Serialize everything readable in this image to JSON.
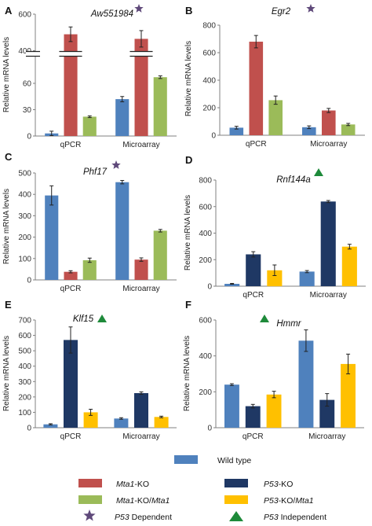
{
  "colors": {
    "wild_type": "#4f81bd",
    "mta1_ko": "#c0504d",
    "mta1_ko_mta1": "#9bbb59",
    "p53_ko": "#1f3864",
    "p53_ko_mta1": "#ffc000",
    "dependent_star": "#5f497a",
    "independent_triangle": "#1e8a3a"
  },
  "legend": {
    "wild_type": "Wild type",
    "mta1_ko_gene": "Mta1",
    "mta1_ko_suffix": "-KO",
    "mta1_ko_mta1_gene": "Mta1",
    "mta1_ko_mta1_mid": "-KO/",
    "mta1_ko_mta1_gene2": "Mta1",
    "p53_ko_gene": "P53",
    "p53_ko_suffix": "-KO",
    "p53_ko_mta1_gene": "P53",
    "p53_ko_mta1_mid": "-KO/",
    "p53_ko_mta1_gene2": "Mta1",
    "p53_dependent_gene": "P53",
    "p53_dependent_suffix": " Dependent",
    "p53_independent_gene": "P53",
    "p53_independent_suffix": " Independent"
  },
  "chart_data": [
    {
      "panel": "A",
      "type": "bar",
      "title": "Aw551984",
      "marker": "star",
      "ylabel": "Relative mRNA levels",
      "broken_axis": true,
      "ylim_lower": [
        0,
        90
      ],
      "yticks_lower": [
        0,
        30,
        60
      ],
      "ylim_upper": [
        400,
        600
      ],
      "yticks_upper": [
        400,
        600
      ],
      "categories": [
        "qPCR",
        "Microarray"
      ],
      "series": [
        {
          "name": "Wild type",
          "color_key": "wild_type",
          "values": [
            3,
            42
          ],
          "errors": [
            2.5,
            3
          ]
        },
        {
          "name": "Mta1-KO",
          "color_key": "mta1_ko",
          "values": [
            490,
            465
          ],
          "errors": [
            40,
            45
          ]
        },
        {
          "name": "Mta1-KO/Mta1",
          "color_key": "mta1_ko_mta1",
          "values": [
            22,
            67
          ],
          "errors": [
            1,
            1.5
          ]
        }
      ]
    },
    {
      "panel": "B",
      "type": "bar",
      "title": "Egr2",
      "marker": "star",
      "ylabel": "Relative mRNA levels",
      "ylim": [
        0,
        800
      ],
      "yticks": [
        0,
        200,
        400,
        600,
        800
      ],
      "categories": [
        "qPCR",
        "Microarray"
      ],
      "series": [
        {
          "name": "Wild type",
          "color_key": "wild_type",
          "values": [
            55,
            58
          ],
          "errors": [
            10,
            10
          ]
        },
        {
          "name": "Mta1-KO",
          "color_key": "mta1_ko",
          "values": [
            680,
            180
          ],
          "errors": [
            45,
            15
          ]
        },
        {
          "name": "Mta1-KO/Mta1",
          "color_key": "mta1_ko_mta1",
          "values": [
            255,
            78
          ],
          "errors": [
            30,
            8
          ]
        }
      ]
    },
    {
      "panel": "C",
      "type": "bar",
      "title": "Phf17",
      "marker": "star",
      "ylabel": "Relative mRNA levels",
      "ylim": [
        0,
        500
      ],
      "yticks": [
        0,
        100,
        200,
        300,
        400,
        500
      ],
      "categories": [
        "qPCR",
        "Microarray"
      ],
      "series": [
        {
          "name": "Wild type",
          "color_key": "wild_type",
          "values": [
            395,
            457
          ],
          "errors": [
            45,
            8
          ]
        },
        {
          "name": "Mta1-KO",
          "color_key": "mta1_ko",
          "values": [
            38,
            95
          ],
          "errors": [
            5,
            8
          ]
        },
        {
          "name": "Mta1-KO/Mta1",
          "color_key": "mta1_ko_mta1",
          "values": [
            92,
            230
          ],
          "errors": [
            10,
            6
          ]
        }
      ]
    },
    {
      "panel": "D",
      "type": "bar",
      "title": "Rnf144a",
      "marker": "triangle",
      "ylabel": "Relative mRNA levels",
      "ylim": [
        0,
        800
      ],
      "yticks": [
        0,
        200,
        400,
        600,
        800
      ],
      "categories": [
        "qPCR",
        "Microarray"
      ],
      "series": [
        {
          "name": "Wild type",
          "color_key": "wild_type",
          "values": [
            18,
            110
          ],
          "errors": [
            3,
            8
          ]
        },
        {
          "name": "P53-KO",
          "color_key": "p53_ko",
          "values": [
            240,
            638
          ],
          "errors": [
            20,
            8
          ]
        },
        {
          "name": "P53-KO/Mta1",
          "color_key": "p53_ko_mta1",
          "values": [
            120,
            298
          ],
          "errors": [
            40,
            18
          ]
        }
      ]
    },
    {
      "panel": "E",
      "type": "bar",
      "title": "Klf15",
      "marker": "triangle",
      "ylabel": "Relative mRNA levels",
      "ylim": [
        0,
        700
      ],
      "yticks": [
        0,
        100,
        200,
        300,
        400,
        500,
        600,
        700
      ],
      "categories": [
        "qPCR",
        "Microarray"
      ],
      "series": [
        {
          "name": "Wild type",
          "color_key": "wild_type",
          "values": [
            22,
            60
          ],
          "errors": [
            4,
            5
          ]
        },
        {
          "name": "P53-KO",
          "color_key": "p53_ko",
          "values": [
            570,
            225
          ],
          "errors": [
            85,
            8
          ]
        },
        {
          "name": "P53-KO/Mta1",
          "color_key": "p53_ko_mta1",
          "values": [
            100,
            70
          ],
          "errors": [
            20,
            5
          ]
        }
      ]
    },
    {
      "panel": "F",
      "type": "bar",
      "title": "Hmmr",
      "marker": "triangle",
      "ylabel": "Relative mRNA levels",
      "ylim": [
        0,
        600
      ],
      "yticks": [
        0,
        200,
        400,
        600
      ],
      "categories": [
        "qPCR",
        "Microarray"
      ],
      "series": [
        {
          "name": "Wild type",
          "color_key": "wild_type",
          "values": [
            240,
            485
          ],
          "errors": [
            5,
            60
          ]
        },
        {
          "name": "P53-KO",
          "color_key": "p53_ko",
          "values": [
            120,
            155
          ],
          "errors": [
            10,
            35
          ]
        },
        {
          "name": "P53-KO/Mta1",
          "color_key": "p53_ko_mta1",
          "values": [
            185,
            355
          ],
          "errors": [
            18,
            55
          ]
        }
      ]
    }
  ]
}
